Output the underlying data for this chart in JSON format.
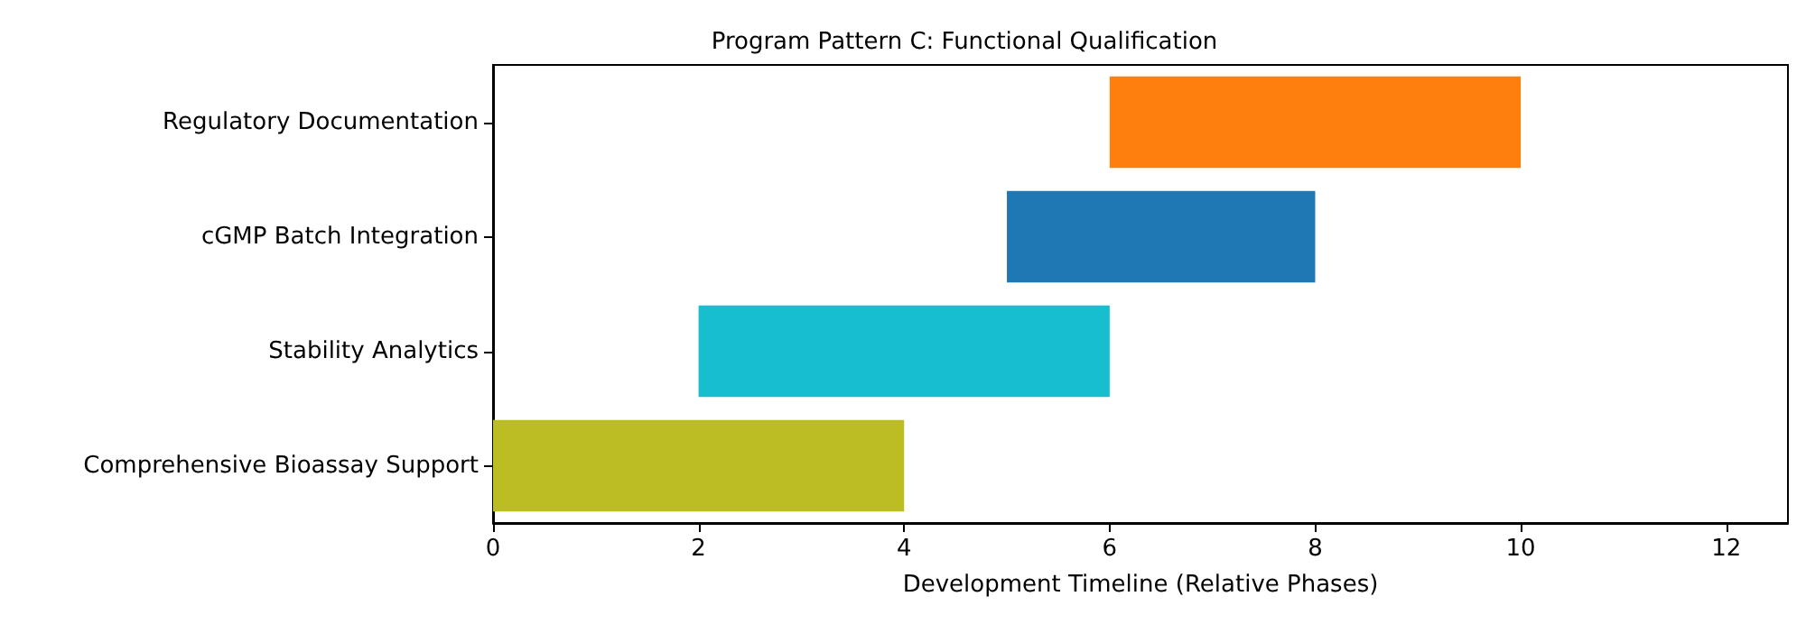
{
  "chart_data": {
    "type": "bar",
    "orientation": "horizontal",
    "title": "Program Pattern C: Functional Qualification",
    "xlabel": "Development Timeline (Relative Phases)",
    "categories": [
      "Regulatory Documentation",
      "cGMP Batch Integration",
      "Stability Analytics",
      "Comprehensive Bioassay Support"
    ],
    "base": [
      6,
      5,
      2,
      0
    ],
    "values": [
      4,
      3,
      4,
      4
    ],
    "colors": [
      "#ff7f0e",
      "#1f77b4",
      "#17becf",
      "#bcbd22"
    ],
    "xlim": [
      0,
      12.6
    ],
    "xticks": [
      0,
      2,
      4,
      6,
      8,
      10,
      12
    ],
    "grid": false
  }
}
